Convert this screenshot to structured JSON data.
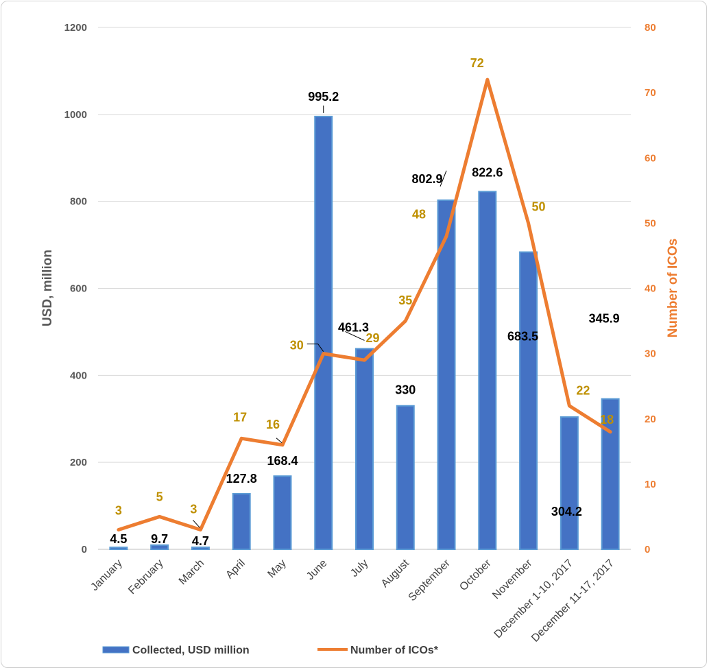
{
  "chart_data": {
    "type": "bar",
    "categories": [
      "January",
      "February",
      "March",
      "April",
      "May",
      "June",
      "July",
      "August",
      "September",
      "October",
      "November",
      "December 1-10, 2017",
      "December 11-17, 2017"
    ],
    "series": [
      {
        "name": "Collected, USD million",
        "type": "bar",
        "axis": "left",
        "color": "#4472c4",
        "values": [
          4.5,
          9.7,
          4.7,
          127.8,
          168.4,
          995.2,
          461.3,
          330,
          802.9,
          822.6,
          683.5,
          304.2,
          345.9
        ],
        "labels": [
          "4.5",
          "9.7",
          "4.7",
          "127.8",
          "168.4",
          "995.2",
          "461.3",
          "330",
          "802.9",
          "822.6",
          "683.5",
          "304.2",
          "345.9"
        ]
      },
      {
        "name": "Number of ICOs*",
        "type": "line",
        "axis": "right",
        "color": "#ed7d31",
        "values": [
          3,
          5,
          3,
          17,
          16,
          30,
          29,
          35,
          48,
          72,
          50,
          22,
          18
        ],
        "labels": [
          "3",
          "5",
          "3",
          "17",
          "16",
          "30",
          "29",
          "35",
          "48",
          "72",
          "50",
          "22",
          "18"
        ]
      }
    ],
    "y_left": {
      "label": "USD, million",
      "ylim": [
        0,
        1200
      ],
      "ticks": [
        "0",
        "200",
        "400",
        "600",
        "800",
        "1000",
        "1200"
      ]
    },
    "y_right": {
      "label": "Number of ICOs",
      "ylim": [
        0,
        80
      ],
      "ticks": [
        "0",
        "10",
        "20",
        "30",
        "40",
        "50",
        "60",
        "70",
        "80"
      ]
    },
    "title": "",
    "xlabel": "",
    "grid": true,
    "legend": "bottom",
    "label_color": "#bf9000"
  }
}
